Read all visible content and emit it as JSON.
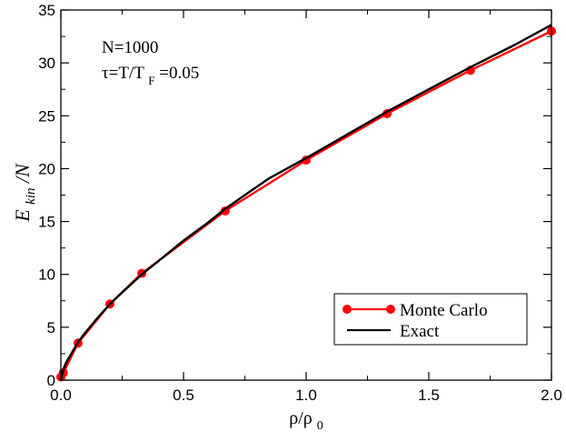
{
  "chart_data": {
    "type": "line",
    "xlabel": {
      "main": "ρ/ρ",
      "sub": "0"
    },
    "ylabel": {
      "main": "E",
      "sub": "kin",
      "suffix": " /N"
    },
    "xlim": [
      0.0,
      2.0
    ],
    "ylim": [
      0,
      35
    ],
    "xticks": [
      "0.0",
      "0.5",
      "1.0",
      "1.5",
      "2.0"
    ],
    "yticks": [
      "0",
      "5",
      "10",
      "15",
      "20",
      "25",
      "30",
      "35"
    ],
    "annotations": {
      "line1": "N=1000",
      "line2_main": "τ=T/T",
      "line2_sub": "F",
      "line2_end": "=0.05"
    },
    "legend_position": "bottom-right",
    "series": [
      {
        "name": "Monte Carlo",
        "color": "#ff0000",
        "marker": "circle",
        "x": [
          0.0,
          0.01,
          0.07,
          0.2,
          0.33,
          0.67,
          1.0,
          1.33,
          1.67,
          2.0
        ],
        "y": [
          0.3,
          0.7,
          3.5,
          7.2,
          10.1,
          16.0,
          20.8,
          25.2,
          29.3,
          33.0
        ]
      },
      {
        "name": "Exact",
        "color": "#000000",
        "marker": "none",
        "x": [
          0.0,
          0.005,
          0.01,
          0.02,
          0.04,
          0.07,
          0.1,
          0.15,
          0.2,
          0.25,
          0.33,
          0.4,
          0.5,
          0.6,
          0.67,
          0.75,
          0.85,
          1.0,
          1.15,
          1.33,
          1.5,
          1.67,
          1.85,
          2.0
        ],
        "y": [
          0.0,
          0.5,
          1.0,
          1.6,
          2.4,
          3.6,
          4.5,
          5.9,
          7.2,
          8.3,
          10.0,
          11.3,
          13.2,
          14.9,
          16.2,
          17.5,
          19.1,
          21.0,
          23.0,
          25.4,
          27.5,
          29.6,
          31.7,
          33.6
        ]
      }
    ]
  }
}
